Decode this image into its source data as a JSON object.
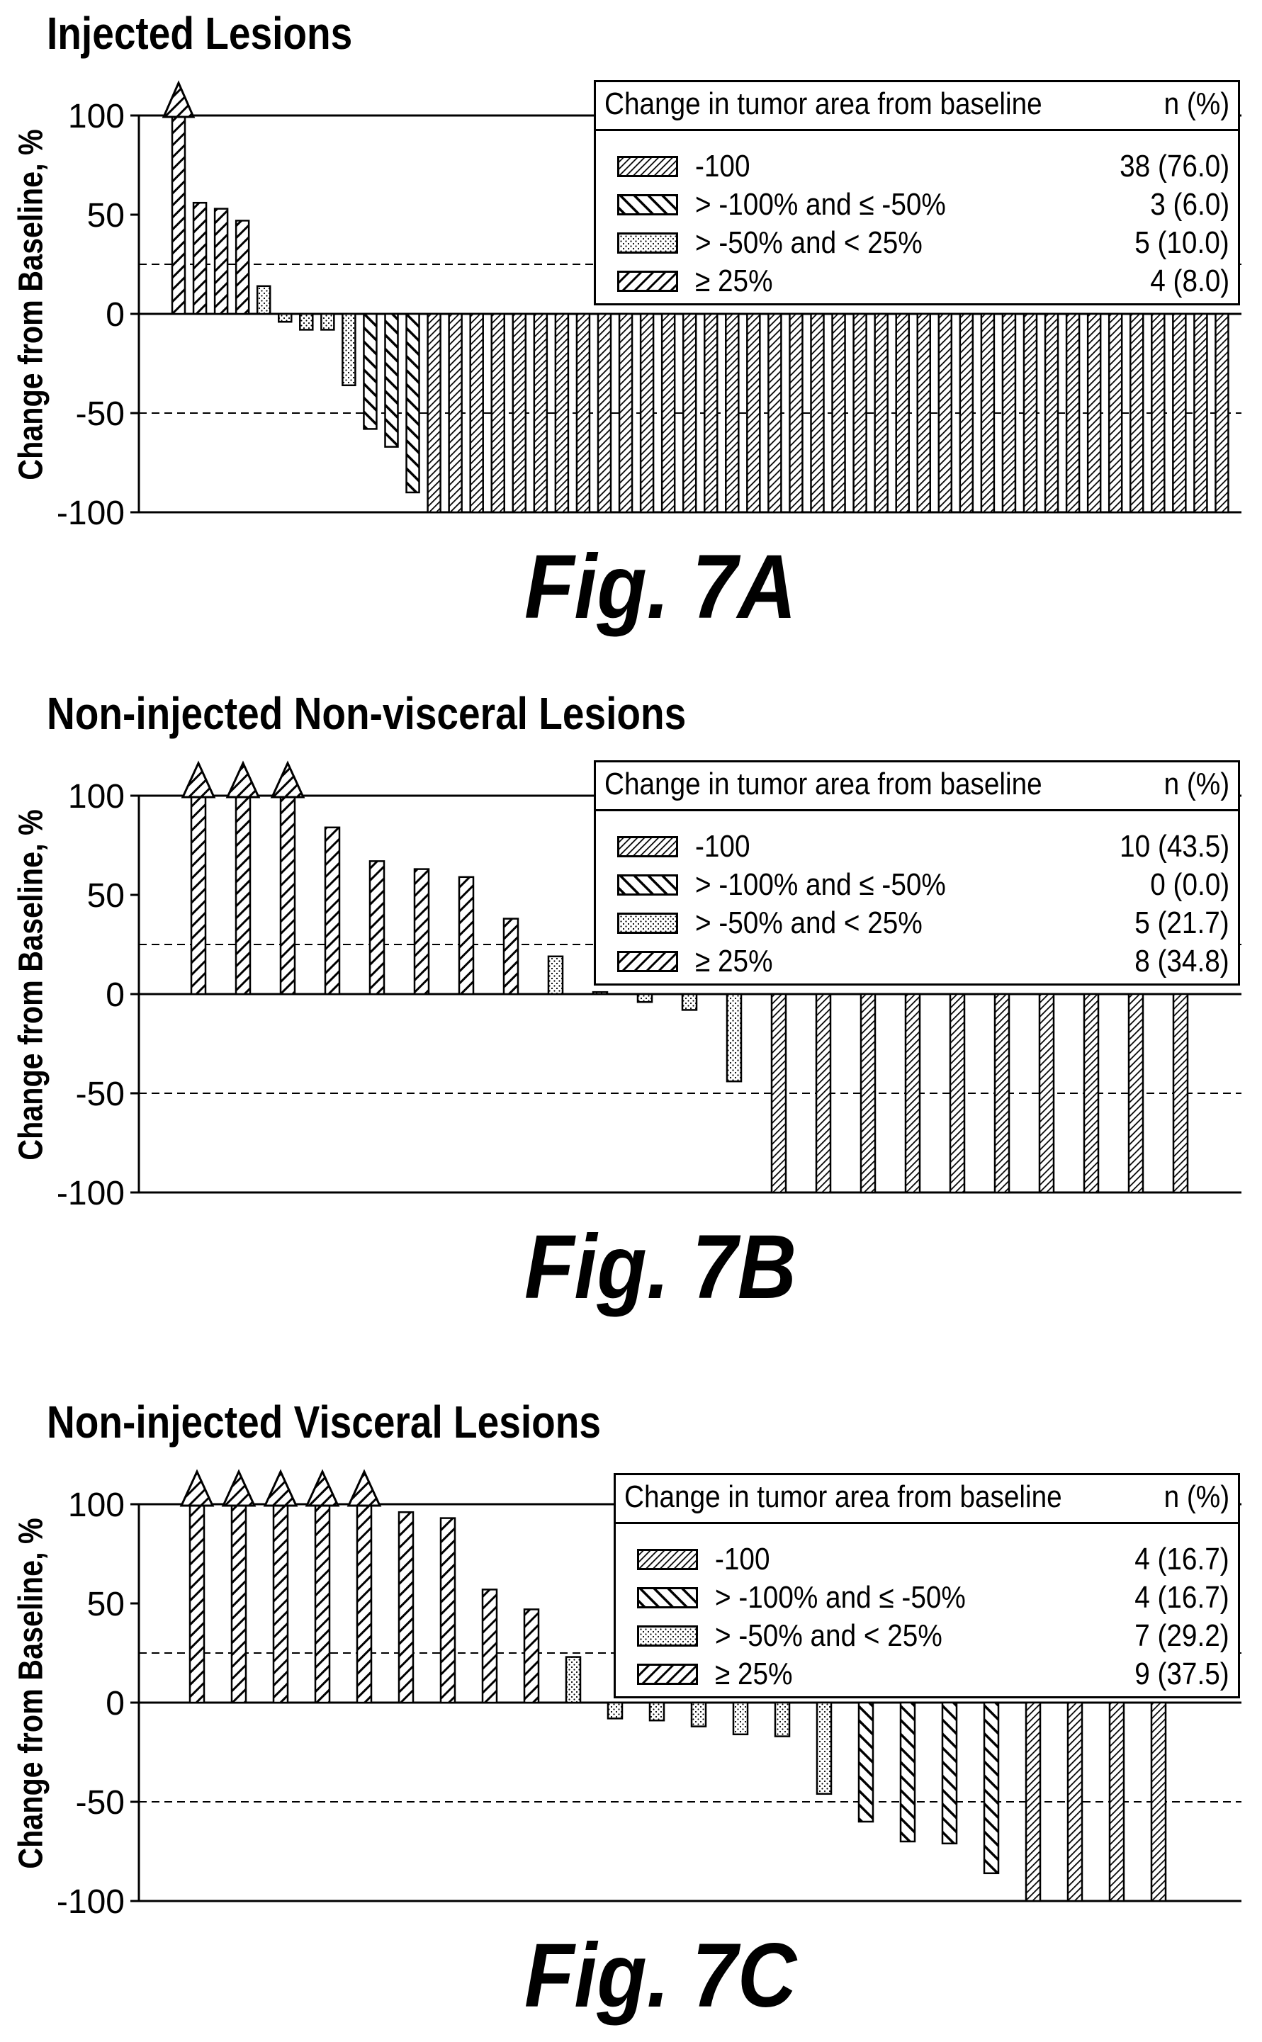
{
  "chart_data": [
    {
      "type": "bar",
      "fig_label": "Fig. 7A",
      "title": "Injected Lesions",
      "ylabel": "Change from Baseline, %",
      "ylim": [
        -100,
        100
      ],
      "yticks": [
        "100",
        "50",
        "0",
        "-50",
        "-100"
      ],
      "reference_lines": [
        25,
        -50
      ],
      "legend": {
        "title": "Change in tumor area from baseline",
        "count_header": "n (%)",
        "entries": [
          {
            "label": "-100",
            "value": "38 (76.0)",
            "pattern": "dense-hatch"
          },
          {
            "label": "> -100% and ≤ -50%",
            "value": "3 (6.0)",
            "pattern": "back-hatch"
          },
          {
            "label": "> -50% and < 25%",
            "value": "5 (10.0)",
            "pattern": "dots"
          },
          {
            "label": "≥ 25%",
            "value": "4 (8.0)",
            "pattern": "forward-hatch"
          }
        ]
      },
      "bars": [
        {
          "value": 100,
          "arrow": true,
          "pattern": "forward-hatch"
        },
        {
          "value": 56,
          "pattern": "forward-hatch"
        },
        {
          "value": 53,
          "pattern": "forward-hatch"
        },
        {
          "value": 47,
          "pattern": "forward-hatch"
        },
        {
          "value": 14,
          "pattern": "dots"
        },
        {
          "value": -4,
          "pattern": "dots"
        },
        {
          "value": -8,
          "pattern": "dots"
        },
        {
          "value": -8,
          "pattern": "dots"
        },
        {
          "value": -36,
          "pattern": "dots"
        },
        {
          "value": -58,
          "pattern": "back-hatch"
        },
        {
          "value": -67,
          "pattern": "back-hatch"
        },
        {
          "value": -90,
          "pattern": "back-hatch"
        },
        {
          "value": -100,
          "pattern": "dense-hatch"
        },
        {
          "value": -100,
          "pattern": "dense-hatch"
        },
        {
          "value": -100,
          "pattern": "dense-hatch"
        },
        {
          "value": -100,
          "pattern": "dense-hatch"
        },
        {
          "value": -100,
          "pattern": "dense-hatch"
        },
        {
          "value": -100,
          "pattern": "dense-hatch"
        },
        {
          "value": -100,
          "pattern": "dense-hatch"
        },
        {
          "value": -100,
          "pattern": "dense-hatch"
        },
        {
          "value": -100,
          "pattern": "dense-hatch"
        },
        {
          "value": -100,
          "pattern": "dense-hatch"
        },
        {
          "value": -100,
          "pattern": "dense-hatch"
        },
        {
          "value": -100,
          "pattern": "dense-hatch"
        },
        {
          "value": -100,
          "pattern": "dense-hatch"
        },
        {
          "value": -100,
          "pattern": "dense-hatch"
        },
        {
          "value": -100,
          "pattern": "dense-hatch"
        },
        {
          "value": -100,
          "pattern": "dense-hatch"
        },
        {
          "value": -100,
          "pattern": "dense-hatch"
        },
        {
          "value": -100,
          "pattern": "dense-hatch"
        },
        {
          "value": -100,
          "pattern": "dense-hatch"
        },
        {
          "value": -100,
          "pattern": "dense-hatch"
        },
        {
          "value": -100,
          "pattern": "dense-hatch"
        },
        {
          "value": -100,
          "pattern": "dense-hatch"
        },
        {
          "value": -100,
          "pattern": "dense-hatch"
        },
        {
          "value": -100,
          "pattern": "dense-hatch"
        },
        {
          "value": -100,
          "pattern": "dense-hatch"
        },
        {
          "value": -100,
          "pattern": "dense-hatch"
        },
        {
          "value": -100,
          "pattern": "dense-hatch"
        },
        {
          "value": -100,
          "pattern": "dense-hatch"
        },
        {
          "value": -100,
          "pattern": "dense-hatch"
        },
        {
          "value": -100,
          "pattern": "dense-hatch"
        },
        {
          "value": -100,
          "pattern": "dense-hatch"
        },
        {
          "value": -100,
          "pattern": "dense-hatch"
        },
        {
          "value": -100,
          "pattern": "dense-hatch"
        },
        {
          "value": -100,
          "pattern": "dense-hatch"
        },
        {
          "value": -100,
          "pattern": "dense-hatch"
        },
        {
          "value": -100,
          "pattern": "dense-hatch"
        },
        {
          "value": -100,
          "pattern": "dense-hatch"
        },
        {
          "value": -100,
          "pattern": "dense-hatch"
        }
      ]
    },
    {
      "type": "bar",
      "fig_label": "Fig. 7B",
      "title": "Non-injected Non-visceral Lesions",
      "ylabel": "Change from Baseline, %",
      "ylim": [
        -100,
        100
      ],
      "yticks": [
        "100",
        "50",
        "0",
        "-50",
        "-100"
      ],
      "reference_lines": [
        25,
        -50
      ],
      "legend": {
        "title": "Change in tumor area from baseline",
        "count_header": "n (%)",
        "entries": [
          {
            "label": "-100",
            "value": "10 (43.5)",
            "pattern": "dense-hatch"
          },
          {
            "label": "> -100% and ≤ -50%",
            "value": "0 (0.0)",
            "pattern": "back-hatch"
          },
          {
            "label": "> -50% and < 25%",
            "value": "5 (21.7)",
            "pattern": "dots"
          },
          {
            "label": "≥ 25%",
            "value": "8 (34.8)",
            "pattern": "forward-hatch"
          }
        ]
      },
      "bars": [
        {
          "value": 100,
          "arrow": true,
          "pattern": "forward-hatch"
        },
        {
          "value": 100,
          "arrow": true,
          "pattern": "forward-hatch"
        },
        {
          "value": 100,
          "arrow": true,
          "pattern": "forward-hatch"
        },
        {
          "value": 84,
          "pattern": "forward-hatch"
        },
        {
          "value": 67,
          "pattern": "forward-hatch"
        },
        {
          "value": 63,
          "pattern": "forward-hatch"
        },
        {
          "value": 59,
          "pattern": "forward-hatch"
        },
        {
          "value": 38,
          "pattern": "forward-hatch"
        },
        {
          "value": 19,
          "pattern": "dots"
        },
        {
          "value": 1,
          "pattern": "dots"
        },
        {
          "value": -4,
          "pattern": "dots"
        },
        {
          "value": -8,
          "pattern": "dots"
        },
        {
          "value": -44,
          "pattern": "dots"
        },
        {
          "value": -100,
          "pattern": "dense-hatch"
        },
        {
          "value": -100,
          "pattern": "dense-hatch"
        },
        {
          "value": -100,
          "pattern": "dense-hatch"
        },
        {
          "value": -100,
          "pattern": "dense-hatch"
        },
        {
          "value": -100,
          "pattern": "dense-hatch"
        },
        {
          "value": -100,
          "pattern": "dense-hatch"
        },
        {
          "value": -100,
          "pattern": "dense-hatch"
        },
        {
          "value": -100,
          "pattern": "dense-hatch"
        },
        {
          "value": -100,
          "pattern": "dense-hatch"
        },
        {
          "value": -100,
          "pattern": "dense-hatch"
        }
      ]
    },
    {
      "type": "bar",
      "fig_label": "Fig. 7C",
      "title": "Non-injected Visceral Lesions",
      "ylabel": "Change from Baseline, %",
      "ylim": [
        -100,
        100
      ],
      "yticks": [
        "100",
        "50",
        "0",
        "-50",
        "-100"
      ],
      "reference_lines": [
        25,
        -50
      ],
      "legend": {
        "title": "Change in tumor area from baseline",
        "count_header": "n (%)",
        "entries": [
          {
            "label": "-100",
            "value": "4 (16.7)",
            "pattern": "dense-hatch"
          },
          {
            "label": "> -100% and ≤ -50%",
            "value": "4 (16.7)",
            "pattern": "back-hatch"
          },
          {
            "label": "> -50% and < 25%",
            "value": "7 (29.2)",
            "pattern": "dots"
          },
          {
            "label": "≥ 25%",
            "value": "9 (37.5)",
            "pattern": "forward-hatch"
          }
        ]
      },
      "bars": [
        {
          "value": 100,
          "arrow": true,
          "pattern": "forward-hatch"
        },
        {
          "value": 100,
          "arrow": true,
          "pattern": "forward-hatch"
        },
        {
          "value": 100,
          "arrow": true,
          "pattern": "forward-hatch"
        },
        {
          "value": 100,
          "arrow": true,
          "pattern": "forward-hatch"
        },
        {
          "value": 100,
          "arrow": true,
          "pattern": "forward-hatch"
        },
        {
          "value": 96,
          "pattern": "forward-hatch"
        },
        {
          "value": 93,
          "pattern": "forward-hatch"
        },
        {
          "value": 57,
          "pattern": "forward-hatch"
        },
        {
          "value": 47,
          "pattern": "forward-hatch"
        },
        {
          "value": 23,
          "pattern": "dots"
        },
        {
          "value": -8,
          "pattern": "dots"
        },
        {
          "value": -9,
          "pattern": "dots"
        },
        {
          "value": -12,
          "pattern": "dots"
        },
        {
          "value": -16,
          "pattern": "dots"
        },
        {
          "value": -17,
          "pattern": "dots"
        },
        {
          "value": -46,
          "pattern": "dots"
        },
        {
          "value": -60,
          "pattern": "back-hatch"
        },
        {
          "value": -70,
          "pattern": "back-hatch"
        },
        {
          "value": -71,
          "pattern": "back-hatch"
        },
        {
          "value": -86,
          "pattern": "back-hatch"
        },
        {
          "value": -100,
          "pattern": "dense-hatch"
        },
        {
          "value": -100,
          "pattern": "dense-hatch"
        },
        {
          "value": -100,
          "pattern": "dense-hatch"
        },
        {
          "value": -100,
          "pattern": "dense-hatch"
        }
      ]
    }
  ]
}
